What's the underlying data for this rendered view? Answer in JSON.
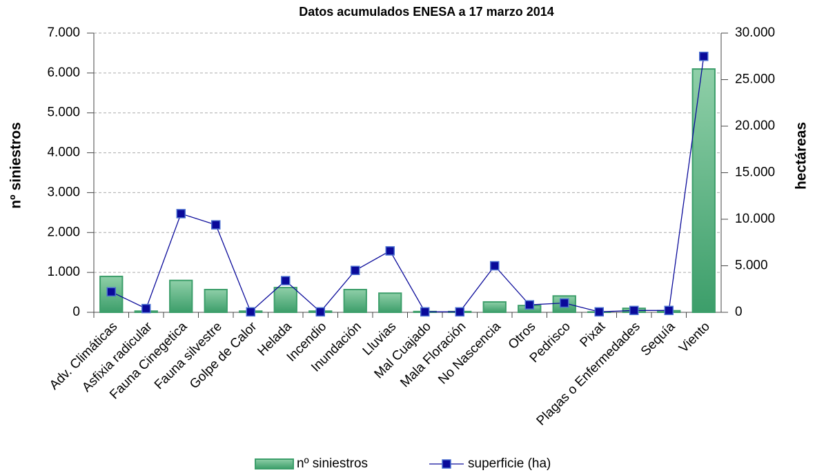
{
  "chart_data": {
    "type": "bar",
    "title": "Datos acumulados ENESA a 17 marzo 2014",
    "y_label": "nº siniestros",
    "y2_label": "hectáreas",
    "categories": [
      "Adv. Climáticas",
      "Asfixia radicular",
      "Fauna Cinegetica",
      "Fauna silvestre",
      "Golpe de Calor",
      "Helada",
      "Incendio",
      "Inundación",
      "Lluvias",
      "Mal Cuajado",
      "Mala Floración",
      "No Nascencia",
      "Otros",
      "Pedrisco",
      "Pixat",
      "Plagas o Enfermedades",
      "Sequía",
      "Viento"
    ],
    "series": [
      {
        "name": "nº siniestros",
        "type": "bar",
        "color": "#3c9e6a",
        "values": [
          900,
          30,
          800,
          570,
          30,
          620,
          30,
          570,
          480,
          20,
          20,
          260,
          170,
          410,
          10,
          100,
          40,
          6100
        ]
      },
      {
        "name": "superficie (ha)",
        "type": "line",
        "axis": "y2",
        "color": "#0a0a9a",
        "values": [
          2200,
          400,
          10600,
          9400,
          50,
          3400,
          50,
          4500,
          6600,
          50,
          50,
          5000,
          800,
          1000,
          50,
          200,
          200,
          27500
        ]
      }
    ],
    "ylim": [
      0,
      7000
    ],
    "yticks": [
      0,
      {
        "value": 1000,
        "label": "1.000"
      },
      {
        "value": 2000,
        "label": "2.000"
      },
      {
        "value": 3000,
        "label": "3.000"
      },
      {
        "value": 4000,
        "label": "4.000"
      },
      {
        "value": 5000,
        "label": "5.000"
      },
      {
        "value": 6000,
        "label": "6.000"
      },
      {
        "value": 7000,
        "label": "7.000"
      }
    ],
    "y2lim": [
      0,
      30000
    ],
    "y2ticks": [
      0,
      {
        "value": 5000,
        "label": "5.000"
      },
      {
        "value": 10000,
        "label": "10.000"
      },
      {
        "value": 15000,
        "label": "15.000"
      },
      {
        "value": 20000,
        "label": "20.000"
      },
      {
        "value": 25000,
        "label": "25.000"
      },
      {
        "value": 30000,
        "label": "30.000"
      }
    ],
    "grid": true,
    "legend": "bottom"
  }
}
